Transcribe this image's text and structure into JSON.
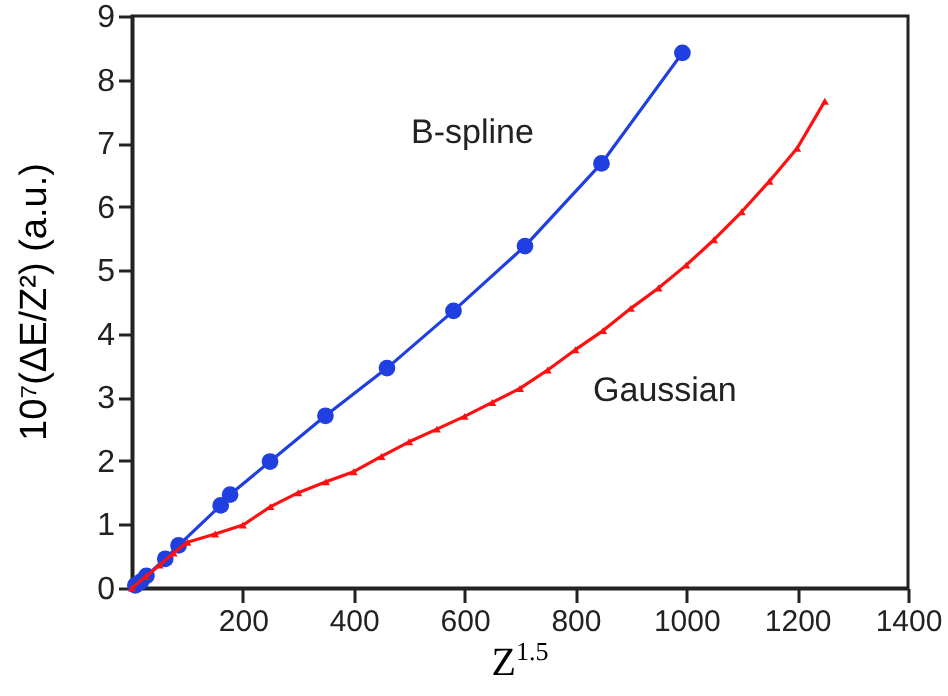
{
  "chart_data": {
    "type": "line",
    "xlabel": "Z$^{1.5}$",
    "ylabel": "10⁷(ΔE/Z²) (a.u.)",
    "xlim": [
      0,
      1400
    ],
    "xticks": [
      200,
      400,
      600,
      800,
      1000,
      1200,
      1400
    ],
    "ylim": [
      0,
      9
    ],
    "yticks": [
      0,
      1,
      2,
      3,
      4,
      5,
      6,
      7,
      8,
      9
    ],
    "grid": false,
    "legend": false,
    "series": [
      {
        "name": "B-spline",
        "color": "#1f3fe0",
        "marker": "circle",
        "x": [
          6,
          16,
          26,
          60,
          84,
          160,
          177,
          249,
          349,
          460,
          580,
          709,
          847,
          993
        ],
        "values": [
          0.04,
          0.1,
          0.19,
          0.46,
          0.67,
          1.3,
          1.47,
          1.99,
          2.71,
          3.46,
          4.36,
          5.38,
          6.68,
          8.42
        ]
      },
      {
        "name": "Gaussian",
        "color": "#ff1010",
        "marker": "triangle",
        "x": [
          0,
          25,
          50,
          75,
          100,
          150,
          200,
          250,
          300,
          350,
          400,
          450,
          500,
          550,
          600,
          650,
          700,
          750,
          800,
          850,
          900,
          950,
          1000,
          1050,
          1100,
          1150,
          1200,
          1250
        ],
        "values": [
          0,
          0.18,
          0.36,
          0.55,
          0.72,
          0.85,
          0.99,
          1.28,
          1.5,
          1.67,
          1.83,
          2.07,
          2.3,
          2.5,
          2.7,
          2.92,
          3.14,
          3.43,
          3.75,
          4.05,
          4.4,
          4.72,
          5.08,
          5.48,
          5.92,
          6.4,
          6.92,
          7.66
        ]
      }
    ]
  }
}
